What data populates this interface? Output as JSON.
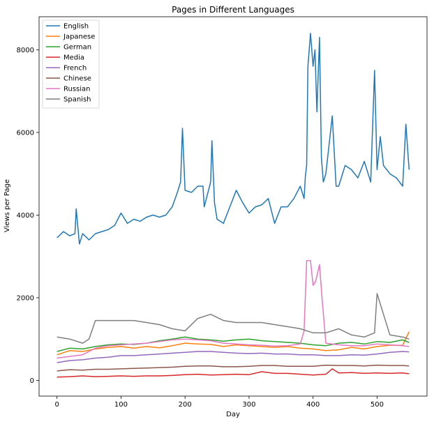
{
  "chart_data": {
    "type": "line",
    "title": "Pages in Different Languages",
    "xlabel": "Day",
    "ylabel": "Views per Page",
    "xlim": [
      -28,
      578
    ],
    "ylim": [
      -380,
      8800
    ],
    "xticks": [
      0,
      100,
      200,
      300,
      400,
      500
    ],
    "yticks": [
      0,
      2000,
      4000,
      6000,
      8000
    ],
    "grid": false,
    "legend_position": "top-left",
    "series": [
      {
        "name": "English",
        "color": "#1f77b4",
        "x": [
          0,
          10,
          20,
          28,
          30,
          35,
          40,
          50,
          60,
          70,
          80,
          90,
          100,
          110,
          120,
          130,
          140,
          150,
          160,
          170,
          180,
          188,
          193,
          196,
          200,
          210,
          220,
          228,
          230,
          240,
          242,
          246,
          250,
          260,
          270,
          280,
          290,
          300,
          310,
          320,
          330,
          340,
          350,
          360,
          370,
          380,
          386,
          388,
          390,
          392,
          396,
          400,
          403,
          406,
          410,
          413,
          416,
          420,
          430,
          436,
          440,
          450,
          460,
          470,
          480,
          490,
          496,
          500,
          505,
          510,
          520,
          530,
          540,
          545,
          550
        ],
        "y": [
          3450,
          3600,
          3500,
          3550,
          4150,
          3300,
          3550,
          3400,
          3550,
          3600,
          3650,
          3750,
          4050,
          3800,
          3900,
          3850,
          3950,
          4000,
          3950,
          4000,
          4200,
          4550,
          4800,
          6100,
          4600,
          4550,
          4700,
          4700,
          4200,
          4800,
          5800,
          4300,
          3900,
          3800,
          4200,
          4600,
          4300,
          4050,
          4200,
          4250,
          4400,
          3800,
          4200,
          4200,
          4400,
          4700,
          4400,
          4950,
          5200,
          7600,
          8400,
          7600,
          8000,
          6500,
          8300,
          5400,
          4800,
          5000,
          6400,
          4700,
          4700,
          5200,
          5100,
          4900,
          5300,
          4800,
          7500,
          5100,
          5900,
          5200,
          5000,
          4900,
          4700,
          6200,
          5100
        ]
      },
      {
        "name": "Japanese",
        "color": "#ff7f0e",
        "x": [
          0,
          20,
          40,
          60,
          80,
          100,
          120,
          140,
          160,
          180,
          200,
          220,
          240,
          260,
          280,
          300,
          320,
          340,
          360,
          380,
          400,
          420,
          440,
          460,
          480,
          500,
          520,
          540,
          550
        ],
        "y": [
          620,
          720,
          700,
          760,
          800,
          820,
          780,
          820,
          790,
          840,
          900,
          880,
          870,
          820,
          860,
          840,
          820,
          800,
          820,
          780,
          760,
          720,
          740,
          800,
          760,
          820,
          850,
          850,
          1180
        ]
      },
      {
        "name": "German",
        "color": "#2ca02c",
        "x": [
          0,
          20,
          40,
          60,
          80,
          100,
          120,
          140,
          160,
          180,
          200,
          220,
          240,
          260,
          280,
          300,
          320,
          340,
          360,
          380,
          400,
          420,
          440,
          460,
          480,
          500,
          520,
          540,
          550
        ],
        "y": [
          700,
          780,
          760,
          820,
          860,
          880,
          870,
          900,
          960,
          1000,
          1050,
          1000,
          980,
          950,
          980,
          1000,
          960,
          940,
          920,
          900,
          860,
          840,
          900,
          920,
          880,
          940,
          920,
          980,
          920
        ]
      },
      {
        "name": "Media",
        "color": "#d62728",
        "x": [
          0,
          20,
          40,
          60,
          80,
          100,
          120,
          140,
          160,
          180,
          200,
          220,
          240,
          260,
          280,
          300,
          320,
          340,
          360,
          380,
          400,
          420,
          430,
          440,
          460,
          480,
          500,
          520,
          540,
          550
        ],
        "y": [
          80,
          90,
          110,
          90,
          100,
          110,
          100,
          110,
          110,
          120,
          140,
          150,
          130,
          140,
          150,
          140,
          210,
          170,
          170,
          150,
          130,
          150,
          280,
          180,
          190,
          170,
          180,
          170,
          180,
          160
        ]
      },
      {
        "name": "French",
        "color": "#9467bd",
        "x": [
          0,
          20,
          40,
          60,
          80,
          100,
          120,
          140,
          160,
          180,
          200,
          220,
          240,
          260,
          280,
          300,
          320,
          340,
          360,
          380,
          400,
          420,
          440,
          460,
          480,
          500,
          520,
          540,
          550
        ],
        "y": [
          430,
          480,
          500,
          540,
          560,
          600,
          600,
          620,
          640,
          660,
          680,
          700,
          700,
          680,
          660,
          650,
          660,
          640,
          640,
          620,
          620,
          600,
          600,
          620,
          610,
          640,
          680,
          700,
          690
        ]
      },
      {
        "name": "Chinese",
        "color": "#8c564b",
        "x": [
          0,
          20,
          40,
          60,
          80,
          100,
          120,
          140,
          160,
          180,
          200,
          220,
          240,
          260,
          280,
          300,
          320,
          340,
          360,
          380,
          400,
          420,
          440,
          460,
          480,
          500,
          520,
          540,
          550
        ],
        "y": [
          230,
          260,
          250,
          270,
          270,
          280,
          290,
          300,
          310,
          320,
          340,
          350,
          350,
          330,
          330,
          340,
          360,
          360,
          340,
          340,
          340,
          370,
          360,
          360,
          350,
          370,
          360,
          360,
          350
        ]
      },
      {
        "name": "Russian",
        "color": "#e377c2",
        "x": [
          0,
          20,
          40,
          60,
          80,
          100,
          120,
          140,
          160,
          180,
          200,
          220,
          240,
          260,
          280,
          300,
          320,
          340,
          360,
          380,
          386,
          390,
          396,
          400,
          404,
          410,
          414,
          420,
          440,
          460,
          480,
          500,
          520,
          540,
          550
        ],
        "y": [
          540,
          580,
          620,
          780,
          840,
          860,
          880,
          900,
          940,
          980,
          1000,
          980,
          960,
          900,
          880,
          860,
          850,
          830,
          840,
          880,
          1200,
          2900,
          2900,
          2300,
          2400,
          2800,
          2000,
          900,
          860,
          840,
          840,
          880,
          860,
          840,
          820
        ]
      },
      {
        "name": "Spanish",
        "color": "#7f7f7f",
        "x": [
          0,
          20,
          40,
          50,
          60,
          80,
          100,
          120,
          140,
          160,
          180,
          200,
          220,
          240,
          260,
          280,
          300,
          320,
          340,
          360,
          380,
          400,
          420,
          440,
          460,
          480,
          496,
          500,
          520,
          540,
          550
        ],
        "y": [
          1050,
          1000,
          900,
          1000,
          1450,
          1450,
          1450,
          1450,
          1400,
          1350,
          1250,
          1200,
          1500,
          1600,
          1450,
          1400,
          1400,
          1400,
          1350,
          1300,
          1250,
          1150,
          1150,
          1250,
          1100,
          1050,
          1150,
          2100,
          1100,
          1050,
          1000
        ]
      }
    ]
  }
}
